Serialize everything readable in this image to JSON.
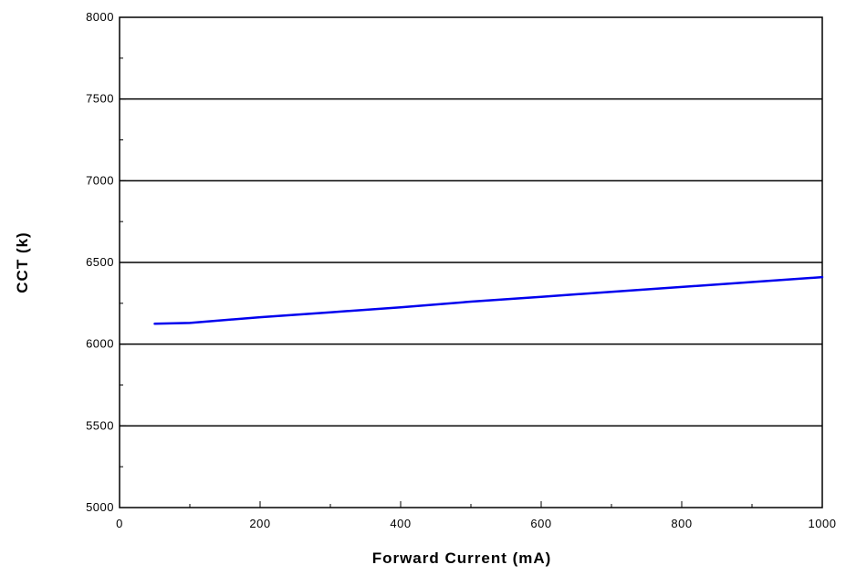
{
  "chart_data": {
    "type": "line",
    "title": "",
    "xlabel": "Forward Current (mA)",
    "ylabel": "CCT (k)",
    "xlim": [
      0,
      1000
    ],
    "ylim": [
      5000,
      8000
    ],
    "x_ticks": [
      0,
      200,
      400,
      600,
      800,
      1000
    ],
    "x_tick_labels": [
      "0",
      "200",
      "400",
      "600",
      "800",
      "1000"
    ],
    "y_ticks": [
      5000,
      5500,
      6000,
      6500,
      7000,
      7500,
      8000
    ],
    "y_tick_labels": [
      "5000",
      "5500",
      "6000",
      "6500",
      "7000",
      "7500",
      "8000"
    ],
    "grid": "horizontal",
    "legend": "none",
    "series": [
      {
        "color": "#0000ee",
        "x": [
          50,
          100,
          200,
          300,
          400,
          500,
          600,
          700,
          800,
          900,
          1000
        ],
        "y": [
          6125,
          6130,
          6165,
          6195,
          6225,
          6260,
          6290,
          6320,
          6350,
          6380,
          6410
        ]
      }
    ]
  }
}
